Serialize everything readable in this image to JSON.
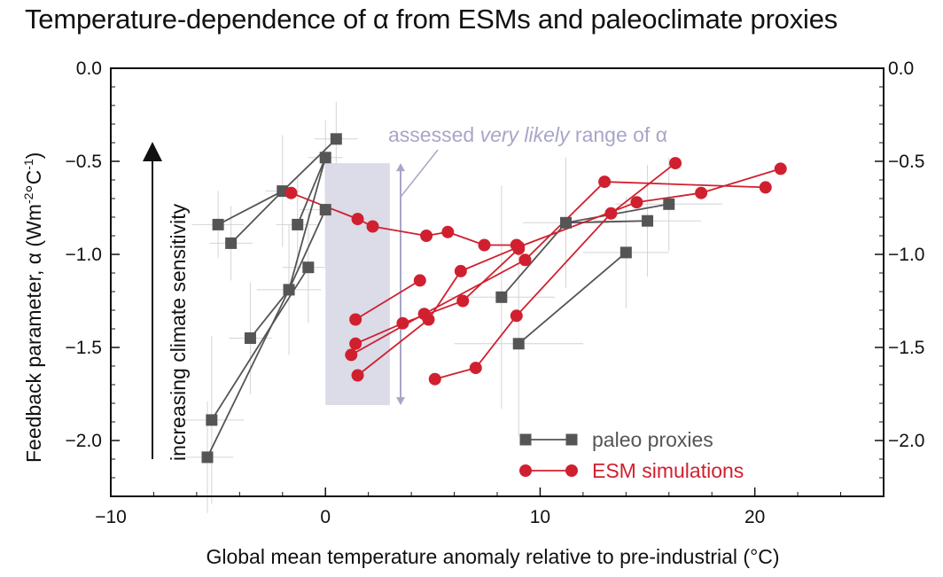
{
  "chart_data": {
    "type": "scatter",
    "title": "Temperature-dependence of α from ESMs and paleoclimate proxies",
    "xlabel": "Global mean temperature anomaly relative to pre-industrial (°C)",
    "ylabel_main": "Feedback parameter, α (Wm",
    "ylabel_sup1": "-2",
    "ylabel_mid": "°C",
    "ylabel_sup2": "-1",
    "ylabel_end": ")",
    "xlim": [
      -10,
      26
    ],
    "ylim": [
      -2.3,
      0
    ],
    "x_ticks": [
      -10,
      0,
      10,
      20
    ],
    "x_tick_labels": [
      "−10",
      "0",
      "10",
      "20"
    ],
    "y_ticks": [
      0,
      -0.5,
      -1,
      -1.5,
      -2
    ],
    "y_tick_labels": [
      "0.0",
      "−0.5",
      "−1.0",
      "−1.5",
      "−2.0"
    ],
    "arrow_label": "increasing climate sensitivity",
    "range_annotation": {
      "text_before": "assessed ",
      "text_italic": "very likely",
      "text_after": " range of α",
      "x_range": [
        0,
        3
      ],
      "y_range": [
        -1.81,
        -0.51
      ],
      "arrow_x": 3.5,
      "color": "#a8a6c8",
      "fill": "#dcdbe8"
    },
    "legend": [
      {
        "label": "paleo proxies",
        "color": "#555555",
        "marker": "square"
      },
      {
        "label": "ESM simulations",
        "color": "#d0202f",
        "marker": "circle"
      }
    ],
    "paleo_color": "#555555",
    "esm_color": "#d0202f",
    "paleo_series": [
      [
        [
          -5.0,
          -0.84
        ],
        [
          -2.0,
          -0.66
        ],
        [
          0.5,
          -0.38
        ]
      ],
      [
        [
          -4.4,
          -0.94
        ],
        [
          -2.0,
          -0.66
        ]
      ],
      [
        [
          -1.3,
          -0.84
        ],
        [
          0.0,
          -0.48
        ]
      ],
      [
        [
          -5.5,
          -2.09
        ],
        [
          -1.7,
          -1.19
        ],
        [
          0.0,
          -0.76
        ]
      ],
      [
        [
          -5.3,
          -1.89
        ],
        [
          -0.8,
          -1.07
        ]
      ],
      [
        [
          -3.5,
          -1.45
        ],
        [
          -1.7,
          -1.19
        ],
        [
          0.0,
          -0.48
        ]
      ],
      [
        [
          8.2,
          -1.23
        ],
        [
          11.2,
          -0.83
        ],
        [
          16.0,
          -0.73
        ]
      ],
      [
        [
          9.0,
          -1.48
        ],
        [
          14.0,
          -0.99
        ]
      ],
      [
        [
          11.2,
          -0.83
        ],
        [
          15.0,
          -0.82
        ]
      ]
    ],
    "paleo_error_bars": [
      {
        "x": -5.0,
        "y": -0.84,
        "xerr": 1.2,
        "yerr": 0.18
      },
      {
        "x": -4.4,
        "y": -0.94,
        "xerr": 1.0,
        "yerr": 0.2
      },
      {
        "x": -2.0,
        "y": -0.66,
        "xerr": 0.8,
        "yerr": 0.3
      },
      {
        "x": 0.5,
        "y": -0.38,
        "xerr": 1.0,
        "yerr": 0.2
      },
      {
        "x": -1.3,
        "y": -0.84,
        "xerr": 1.0,
        "yerr": 0.25
      },
      {
        "x": 0.0,
        "y": -0.48,
        "xerr": 0.8,
        "yerr": 0.2
      },
      {
        "x": 0.0,
        "y": -0.76,
        "xerr": 1.2,
        "yerr": 0.3
      },
      {
        "x": -5.5,
        "y": -2.09,
        "xerr": 1.2,
        "yerr": 0.3
      },
      {
        "x": -5.3,
        "y": -1.89,
        "xerr": 1.5,
        "yerr": 0.45
      },
      {
        "x": -3.5,
        "y": -1.45,
        "xerr": 1.0,
        "yerr": 0.3
      },
      {
        "x": -1.7,
        "y": -1.19,
        "xerr": 1.5,
        "yerr": 0.35
      },
      {
        "x": -0.8,
        "y": -1.07,
        "xerr": 1.2,
        "yerr": 0.3
      },
      {
        "x": 8.2,
        "y": -1.23,
        "xerr": 2.5,
        "yerr": 0.6
      },
      {
        "x": 9.0,
        "y": -1.48,
        "xerr": 3.0,
        "yerr": 0.5
      },
      {
        "x": 11.2,
        "y": -0.83,
        "xerr": 2.0,
        "yerr": 0.35
      },
      {
        "x": 14.0,
        "y": -0.99,
        "xerr": 2.0,
        "yerr": 0.3
      },
      {
        "x": 15.0,
        "y": -0.82,
        "xerr": 2.5,
        "yerr": 0.3
      },
      {
        "x": 16.0,
        "y": -0.73,
        "xerr": 2.5,
        "yerr": 0.25
      }
    ],
    "esm_series": [
      [
        [
          -1.6,
          -0.67
        ],
        [
          1.5,
          -0.81
        ],
        [
          2.2,
          -0.85
        ],
        [
          4.7,
          -0.9
        ],
        [
          5.7,
          -0.88
        ]
      ],
      [
        [
          5.7,
          -0.88
        ],
        [
          7.4,
          -0.95
        ],
        [
          8.9,
          -0.95
        ]
      ],
      [
        [
          1.4,
          -1.35
        ],
        [
          4.4,
          -1.14
        ]
      ],
      [
        [
          1.2,
          -1.54
        ],
        [
          4.6,
          -1.32
        ],
        [
          9.3,
          -1.03
        ],
        [
          13.0,
          -0.61
        ],
        [
          20.5,
          -0.64
        ]
      ],
      [
        [
          1.4,
          -1.48
        ],
        [
          3.6,
          -1.37
        ],
        [
          6.4,
          -1.25
        ],
        [
          9.0,
          -0.97
        ]
      ],
      [
        [
          1.5,
          -1.65
        ],
        [
          4.8,
          -1.35
        ],
        [
          6.3,
          -1.09
        ],
        [
          9.0,
          -0.96
        ],
        [
          14.5,
          -0.72
        ],
        [
          17.5,
          -0.67
        ],
        [
          21.2,
          -0.54
        ]
      ],
      [
        [
          5.1,
          -1.67
        ],
        [
          7.0,
          -1.61
        ],
        [
          8.9,
          -1.33
        ],
        [
          13.3,
          -0.78
        ],
        [
          16.3,
          -0.51
        ]
      ]
    ]
  }
}
